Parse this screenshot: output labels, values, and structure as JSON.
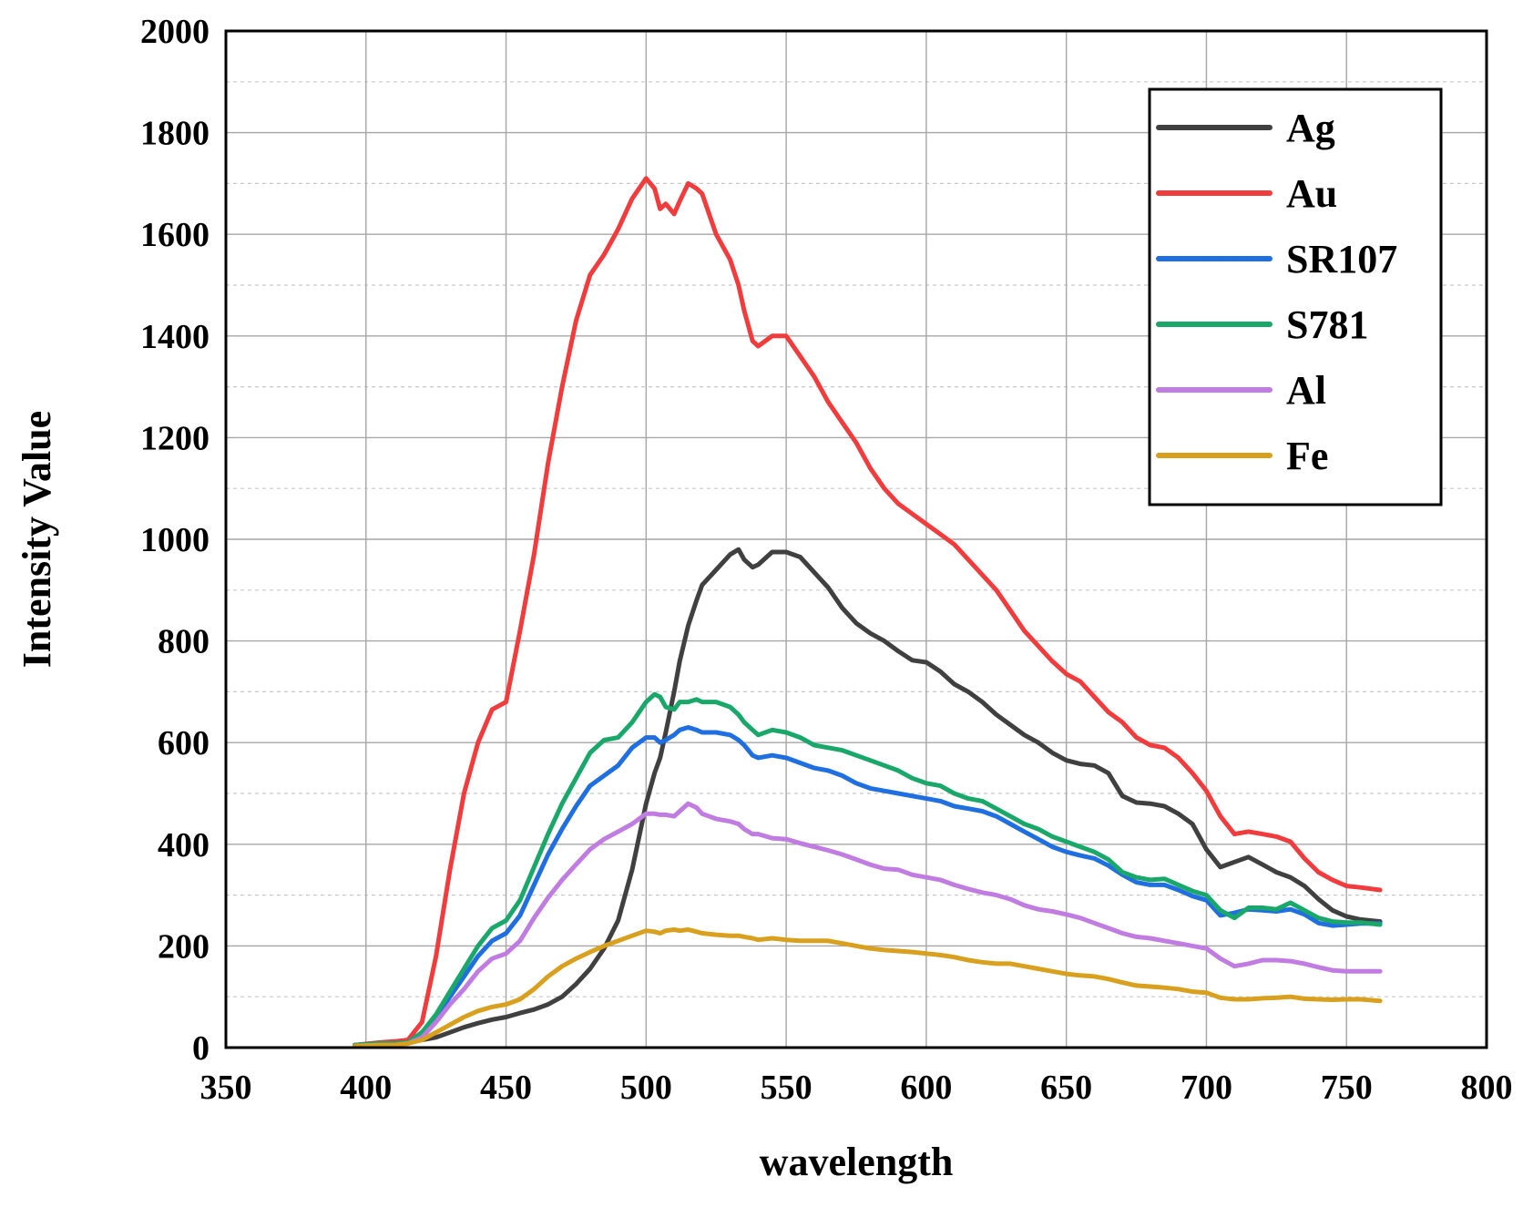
{
  "chart_data": {
    "type": "line",
    "title": "",
    "xlabel": "wavelength",
    "ylabel": "Intensity Value",
    "xlim": [
      350,
      800
    ],
    "ylim": [
      0,
      2000
    ],
    "xticks": [
      350,
      400,
      450,
      500,
      550,
      600,
      650,
      700,
      750,
      800
    ],
    "yticks": [
      0,
      200,
      400,
      600,
      800,
      1000,
      1200,
      1400,
      1600,
      1800,
      2000
    ],
    "grid": true,
    "legend_position": "top-right",
    "x": [
      396,
      405,
      410,
      415,
      420,
      425,
      430,
      435,
      440,
      445,
      450,
      455,
      460,
      465,
      470,
      475,
      480,
      485,
      490,
      495,
      500,
      503,
      505,
      507,
      510,
      512,
      515,
      518,
      520,
      525,
      530,
      533,
      535,
      538,
      540,
      545,
      550,
      555,
      560,
      565,
      570,
      575,
      580,
      585,
      590,
      595,
      600,
      605,
      610,
      615,
      620,
      625,
      630,
      635,
      640,
      645,
      650,
      655,
      660,
      665,
      670,
      675,
      680,
      685,
      690,
      695,
      700,
      705,
      710,
      715,
      720,
      725,
      730,
      735,
      740,
      745,
      750,
      755,
      762
    ],
    "series": [
      {
        "name": "Ag",
        "color": "#404040",
        "values": [
          5,
          8,
          10,
          12,
          15,
          20,
          30,
          40,
          48,
          55,
          60,
          68,
          75,
          85,
          100,
          125,
          155,
          195,
          250,
          350,
          480,
          540,
          570,
          620,
          700,
          760,
          830,
          880,
          910,
          940,
          970,
          980,
          960,
          945,
          950,
          975,
          975,
          965,
          935,
          905,
          865,
          835,
          815,
          800,
          780,
          762,
          758,
          740,
          715,
          700,
          680,
          655,
          635,
          615,
          600,
          580,
          565,
          558,
          555,
          540,
          495,
          482,
          480,
          475,
          460,
          440,
          390,
          355,
          365,
          375,
          360,
          345,
          335,
          318,
          292,
          270,
          258,
          252,
          248
        ]
      },
      {
        "name": "Au",
        "color": "#f03c3c",
        "values": [
          5,
          10,
          12,
          15,
          50,
          180,
          350,
          500,
          600,
          665,
          680,
          820,
          970,
          1150,
          1300,
          1430,
          1520,
          1560,
          1610,
          1670,
          1710,
          1690,
          1650,
          1660,
          1640,
          1665,
          1700,
          1690,
          1680,
          1600,
          1550,
          1500,
          1450,
          1390,
          1380,
          1400,
          1400,
          1360,
          1320,
          1270,
          1230,
          1190,
          1140,
          1100,
          1070,
          1050,
          1030,
          1010,
          990,
          960,
          930,
          900,
          860,
          820,
          790,
          760,
          735,
          720,
          690,
          660,
          640,
          610,
          595,
          590,
          570,
          540,
          505,
          455,
          420,
          425,
          420,
          415,
          405,
          372,
          345,
          330,
          318,
          315,
          310
        ]
      },
      {
        "name": "SR107",
        "color": "#1f6fe0",
        "values": [
          5,
          8,
          8,
          10,
          30,
          60,
          100,
          140,
          180,
          210,
          225,
          260,
          320,
          380,
          430,
          475,
          515,
          535,
          555,
          590,
          610,
          610,
          600,
          605,
          615,
          625,
          630,
          625,
          620,
          620,
          615,
          605,
          595,
          575,
          570,
          575,
          570,
          560,
          550,
          545,
          535,
          520,
          510,
          505,
          500,
          495,
          490,
          485,
          475,
          470,
          465,
          455,
          440,
          425,
          410,
          395,
          385,
          378,
          372,
          358,
          340,
          325,
          320,
          320,
          310,
          298,
          290,
          260,
          265,
          272,
          270,
          268,
          272,
          262,
          245,
          240,
          242,
          244,
          244
        ]
      },
      {
        "name": "S781",
        "color": "#1aa86a",
        "values": [
          5,
          8,
          8,
          10,
          30,
          65,
          110,
          155,
          200,
          235,
          250,
          290,
          355,
          420,
          480,
          530,
          580,
          605,
          610,
          640,
          680,
          695,
          690,
          670,
          665,
          680,
          680,
          685,
          680,
          680,
          670,
          655,
          640,
          625,
          615,
          625,
          620,
          610,
          595,
          590,
          585,
          575,
          565,
          555,
          545,
          530,
          520,
          515,
          500,
          490,
          485,
          470,
          455,
          440,
          430,
          415,
          405,
          395,
          385,
          370,
          345,
          335,
          330,
          332,
          320,
          308,
          300,
          270,
          255,
          275,
          275,
          272,
          285,
          270,
          255,
          248,
          246,
          246,
          242
        ]
      },
      {
        "name": "Al",
        "color": "#c07ce0",
        "values": [
          3,
          5,
          5,
          8,
          20,
          50,
          85,
          115,
          150,
          175,
          185,
          210,
          255,
          295,
          330,
          360,
          390,
          410,
          425,
          440,
          460,
          460,
          458,
          458,
          455,
          465,
          480,
          472,
          460,
          450,
          445,
          440,
          430,
          420,
          420,
          412,
          410,
          402,
          395,
          388,
          380,
          370,
          360,
          352,
          350,
          340,
          335,
          330,
          320,
          312,
          305,
          300,
          292,
          280,
          272,
          268,
          262,
          255,
          245,
          235,
          225,
          218,
          215,
          210,
          205,
          200,
          195,
          175,
          160,
          165,
          172,
          172,
          170,
          165,
          158,
          152,
          150,
          150,
          150
        ]
      },
      {
        "name": "Fe",
        "color": "#d9a01e",
        "values": [
          3,
          5,
          5,
          8,
          15,
          30,
          45,
          60,
          72,
          80,
          85,
          95,
          115,
          140,
          160,
          175,
          188,
          200,
          210,
          220,
          230,
          228,
          225,
          230,
          232,
          230,
          232,
          228,
          225,
          222,
          220,
          220,
          218,
          215,
          212,
          215,
          212,
          210,
          210,
          210,
          205,
          200,
          195,
          192,
          190,
          188,
          185,
          182,
          178,
          172,
          168,
          165,
          165,
          160,
          155,
          150,
          145,
          142,
          140,
          135,
          128,
          122,
          120,
          118,
          115,
          110,
          108,
          98,
          95,
          95,
          97,
          98,
          100,
          96,
          95,
          94,
          95,
          95,
          92
        ]
      }
    ]
  }
}
